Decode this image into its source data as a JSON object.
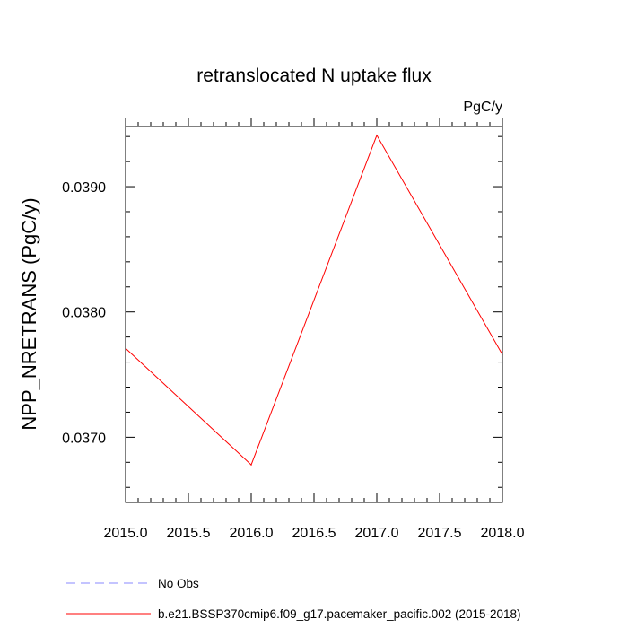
{
  "chart_data": {
    "type": "line",
    "title": "retranslocated N uptake flux",
    "units": "PgC/y",
    "xlabel": "",
    "ylabel": "NPP_NRETRANS  (PgC/y)",
    "xlim": [
      2015.0,
      2018.0
    ],
    "ylim": [
      0.03648,
      0.03948
    ],
    "x_ticks": [
      2015.0,
      2015.5,
      2016.0,
      2016.5,
      2017.0,
      2017.5,
      2018.0
    ],
    "x_tick_labels": [
      "2015.0",
      "2015.5",
      "2016.0",
      "2016.5",
      "2017.0",
      "2017.5",
      "2018.0"
    ],
    "y_ticks": [
      0.037,
      0.038,
      0.039
    ],
    "y_tick_labels": [
      "0.0370",
      "0.0380",
      "0.0390"
    ],
    "grid": false,
    "legend_position": "bottom-left",
    "series": [
      {
        "name": "b.e21.BSSP370cmip6.f09_g17.pacemaker_pacific.002 (2015-2018)",
        "color": "#ff0000",
        "dash": "solid",
        "x": [
          2015,
          2016,
          2017,
          2018
        ],
        "values": [
          0.03771,
          0.03678,
          0.03941,
          0.03766
        ]
      }
    ],
    "legend": [
      {
        "label": "No Obs",
        "color": "#8a8aff",
        "dash": "dashed"
      },
      {
        "label": "b.e21.BSSP370cmip6.f09_g17.pacemaker_pacific.002 (2015-2018)",
        "color": "#ff0000",
        "dash": "solid"
      }
    ]
  }
}
